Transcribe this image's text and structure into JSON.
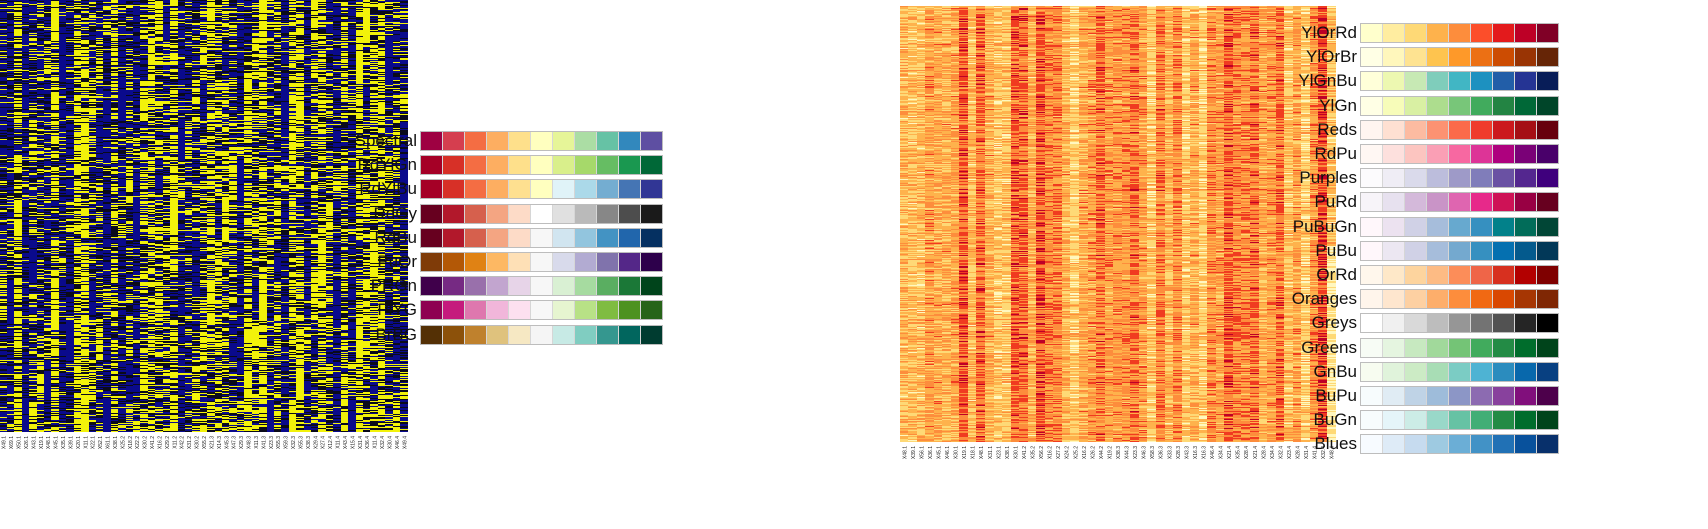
{
  "left_heatmap": {
    "colors": {
      "low": "#0a0a8c",
      "mid": "#0a0a1a",
      "high": "#f2f20a",
      "bright_blue": "#1a1aff"
    },
    "column_labels": [
      "X49.1",
      "X69.1",
      "X50.1",
      "X26.1",
      "X43.1",
      "X19.1",
      "X48.1",
      "X45.1",
      "X35.1",
      "X39.1",
      "X20.1",
      "X11.1",
      "X22.1",
      "X52.1",
      "X61.1",
      "X38.1",
      "X25.2",
      "X18.2",
      "X22.2",
      "X30.2",
      "X41.2",
      "X16.2",
      "X29.2",
      "X11.2",
      "X42.2",
      "X31.2",
      "X30.2",
      "X55.2",
      "X21.3",
      "X14.3",
      "X45.3",
      "X47.3",
      "X29.3",
      "X48.3",
      "X11.3",
      "X41.3",
      "X23.3",
      "X55.3",
      "X59.3",
      "X32.3",
      "X55.3",
      "X38.3",
      "X29.4",
      "X27.4",
      "X12.4",
      "X11.4",
      "X43.4",
      "X15.4",
      "X31.4",
      "X36.4",
      "X11.4",
      "X32.4",
      "X30.4",
      "X46.4",
      "X49.4"
    ]
  },
  "right_heatmap": {
    "colors": [
      "#fff7c0",
      "#fed976",
      "#feb24c",
      "#fd8d3c",
      "#f03b20",
      "#bd0026"
    ],
    "column_labels": [
      "X48.1",
      "X39.1",
      "X56.1",
      "X36.1",
      "X45.1",
      "X46.1",
      "X30.1",
      "X19.1",
      "X18.1",
      "X48.1",
      "X31.1",
      "X23.1",
      "X38.1",
      "X30.1",
      "X41.2",
      "X35.2",
      "X56.2",
      "X16.2",
      "X27.2",
      "X24.2",
      "X25.2",
      "X16.2",
      "X26.2",
      "X44.2",
      "X19.2",
      "X38.3",
      "X44.3",
      "X23.3",
      "X46.3",
      "X58.3",
      "X36.3",
      "X33.3",
      "X28.3",
      "X43.3",
      "X16.3",
      "X16.3",
      "X46.4",
      "X34.4",
      "X21.4",
      "X35.4",
      "X28.4",
      "X21.4",
      "X28.4",
      "X34.4",
      "X32.4",
      "X23.4",
      "X28.4",
      "X31.4",
      "X41.4",
      "X32.4",
      "X48.4"
    ]
  },
  "diverging_palettes": [
    {
      "name": "Spectral",
      "colors": [
        "#9e0142",
        "#d53e4f",
        "#f46d43",
        "#fdae61",
        "#fee08b",
        "#ffffbf",
        "#e6f598",
        "#abdda4",
        "#66c2a5",
        "#3288bd",
        "#5e4fa2"
      ]
    },
    {
      "name": "RdYlGn",
      "colors": [
        "#a50026",
        "#d73027",
        "#f46d43",
        "#fdae61",
        "#fee08b",
        "#ffffbf",
        "#d9ef8b",
        "#a6d96a",
        "#66bd63",
        "#1a9850",
        "#006837"
      ]
    },
    {
      "name": "RdYlBu",
      "colors": [
        "#a50026",
        "#d73027",
        "#f46d43",
        "#fdae61",
        "#fee090",
        "#ffffbf",
        "#e0f3f8",
        "#abd9e9",
        "#74add1",
        "#4575b4",
        "#313695"
      ]
    },
    {
      "name": "RdGy",
      "colors": [
        "#67001f",
        "#b2182b",
        "#d6604d",
        "#f4a582",
        "#fddbc7",
        "#ffffff",
        "#e0e0e0",
        "#bababa",
        "#878787",
        "#4d4d4d",
        "#1a1a1a"
      ]
    },
    {
      "name": "RdBu",
      "colors": [
        "#67001f",
        "#b2182b",
        "#d6604d",
        "#f4a582",
        "#fddbc7",
        "#f7f7f7",
        "#d1e5f0",
        "#92c5de",
        "#4393c3",
        "#2166ac",
        "#053061"
      ]
    },
    {
      "name": "PuOr",
      "colors": [
        "#7f3b08",
        "#b35806",
        "#e08214",
        "#fdb863",
        "#fee0b6",
        "#f7f7f7",
        "#d8daeb",
        "#b2abd2",
        "#8073ac",
        "#542788",
        "#2d004b"
      ]
    },
    {
      "name": "PRGn",
      "colors": [
        "#40004b",
        "#762a83",
        "#9970ab",
        "#c2a5cf",
        "#e7d4e8",
        "#f7f7f7",
        "#d9f0d3",
        "#a6dba0",
        "#5aae61",
        "#1b7837",
        "#00441b"
      ]
    },
    {
      "name": "PiYG",
      "colors": [
        "#8e0152",
        "#c51b7d",
        "#de77ae",
        "#f1b6da",
        "#fde0ef",
        "#f7f7f7",
        "#e6f5d0",
        "#b8e186",
        "#7fbc41",
        "#4d9221",
        "#276419"
      ]
    },
    {
      "name": "BrBG",
      "colors": [
        "#543005",
        "#8c510a",
        "#bf812d",
        "#dfc27d",
        "#f6e8c3",
        "#f5f5f5",
        "#c7eae5",
        "#80cdc1",
        "#35978f",
        "#01665e",
        "#003c30"
      ]
    }
  ],
  "sequential_palettes": [
    {
      "name": "YlOrRd",
      "colors": [
        "#ffffcc",
        "#ffeda0",
        "#fed976",
        "#feb24c",
        "#fd8d3c",
        "#fc4e2a",
        "#e31a1c",
        "#bd0026",
        "#800026"
      ]
    },
    {
      "name": "YlOrBr",
      "colors": [
        "#ffffe5",
        "#fff7bc",
        "#fee391",
        "#fec44f",
        "#fe9929",
        "#ec7014",
        "#cc4c02",
        "#993404",
        "#662506"
      ]
    },
    {
      "name": "YlGnBu",
      "colors": [
        "#ffffd9",
        "#edf8b1",
        "#c7e9b4",
        "#7fcdbb",
        "#41b6c4",
        "#1d91c0",
        "#225ea8",
        "#253494",
        "#081d58"
      ]
    },
    {
      "name": "YlGn",
      "colors": [
        "#ffffe5",
        "#f7fcb9",
        "#d9f0a3",
        "#addd8e",
        "#78c679",
        "#41ab5d",
        "#238443",
        "#006837",
        "#004529"
      ]
    },
    {
      "name": "Reds",
      "colors": [
        "#fff5f0",
        "#fee0d2",
        "#fcbba1",
        "#fc9272",
        "#fb6a4a",
        "#ef3b2c",
        "#cb181d",
        "#a50f15",
        "#67000d"
      ]
    },
    {
      "name": "RdPu",
      "colors": [
        "#fff7f3",
        "#fde0dd",
        "#fcc5c0",
        "#fa9fb5",
        "#f768a1",
        "#dd3497",
        "#ae017e",
        "#7a0177",
        "#49006a"
      ]
    },
    {
      "name": "Purples",
      "colors": [
        "#fcfbfd",
        "#efedf5",
        "#dadaeb",
        "#bcbddc",
        "#9e9ac8",
        "#807dba",
        "#6a51a3",
        "#54278f",
        "#3f007d"
      ]
    },
    {
      "name": "PuRd",
      "colors": [
        "#f7f4f9",
        "#e7e1ef",
        "#d4b9da",
        "#c994c7",
        "#df65b0",
        "#e7298a",
        "#ce1256",
        "#980043",
        "#67001f"
      ]
    },
    {
      "name": "PuBuGn",
      "colors": [
        "#fff7fb",
        "#ece2f0",
        "#d0d1e6",
        "#a6bddb",
        "#67a9cf",
        "#3690c0",
        "#02818a",
        "#016c59",
        "#014636"
      ]
    },
    {
      "name": "PuBu",
      "colors": [
        "#fff7fb",
        "#ece7f2",
        "#d0d1e6",
        "#a6bddb",
        "#74a9cf",
        "#3690c0",
        "#0570b0",
        "#045a8d",
        "#023858"
      ]
    },
    {
      "name": "OrRd",
      "colors": [
        "#fff7ec",
        "#fee8c8",
        "#fdd49e",
        "#fdbb84",
        "#fc8d59",
        "#ef6548",
        "#d7301f",
        "#b30000",
        "#7f0000"
      ]
    },
    {
      "name": "Oranges",
      "colors": [
        "#fff5eb",
        "#fee6ce",
        "#fdd0a2",
        "#fdae6b",
        "#fd8d3c",
        "#f16913",
        "#d94801",
        "#a63603",
        "#7f2704"
      ]
    },
    {
      "name": "Greys",
      "colors": [
        "#ffffff",
        "#f0f0f0",
        "#d9d9d9",
        "#bdbdbd",
        "#969696",
        "#737373",
        "#525252",
        "#252525",
        "#000000"
      ]
    },
    {
      "name": "Greens",
      "colors": [
        "#f7fcf5",
        "#e5f5e0",
        "#c7e9c0",
        "#a1d99b",
        "#74c476",
        "#41ab5d",
        "#238b45",
        "#006d2c",
        "#00441b"
      ]
    },
    {
      "name": "GnBu",
      "colors": [
        "#f7fcf0",
        "#e0f3db",
        "#ccebc5",
        "#a8ddb5",
        "#7bccc4",
        "#4eb3d3",
        "#2b8cbe",
        "#0868ac",
        "#084081"
      ]
    },
    {
      "name": "BuPu",
      "colors": [
        "#f7fcfd",
        "#e0ecf4",
        "#bfd3e6",
        "#9ebcda",
        "#8c96c6",
        "#8c6bb1",
        "#88419d",
        "#810f7c",
        "#4d004b"
      ]
    },
    {
      "name": "BuGn",
      "colors": [
        "#f7fcfd",
        "#e5f5f9",
        "#ccece6",
        "#99d8c9",
        "#66c2a4",
        "#41ae76",
        "#238b45",
        "#006d2c",
        "#00441b"
      ]
    },
    {
      "name": "Blues",
      "colors": [
        "#f7fbff",
        "#deebf7",
        "#c6dbef",
        "#9ecae1",
        "#6baed6",
        "#4292c6",
        "#2171b5",
        "#08519c",
        "#08306b"
      ]
    }
  ]
}
